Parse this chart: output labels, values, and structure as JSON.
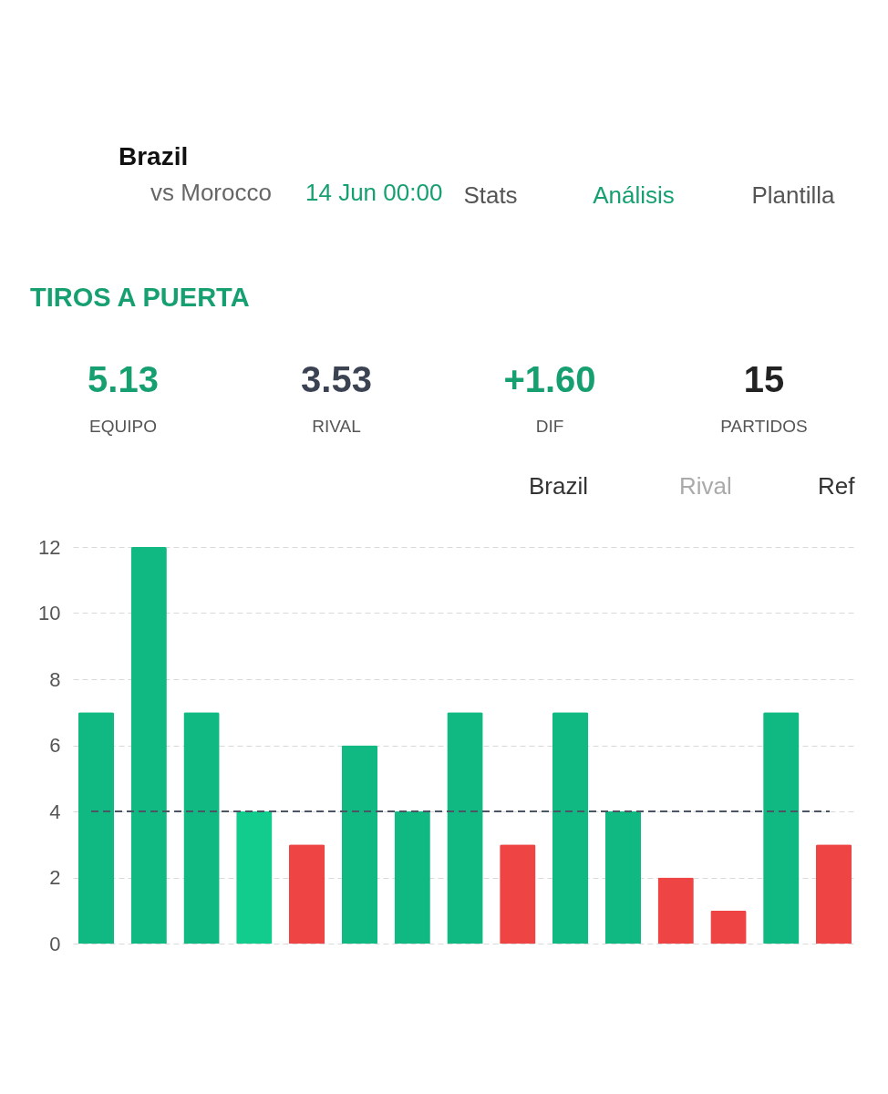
{
  "chart_data": {
    "type": "bar",
    "title": "TIROS A PUERTA",
    "categories": [
      null,
      null,
      null,
      null,
      null,
      null,
      null,
      null,
      null,
      null,
      null,
      null,
      null,
      null,
      null
    ],
    "values": [
      7,
      12,
      7,
      4,
      3,
      6,
      4,
      7,
      3,
      7,
      4,
      2,
      1,
      7,
      3
    ],
    "colors": [
      "#10b981",
      "#10b981",
      "#10b981",
      "#12cc8e",
      "#ef4444",
      "#10b981",
      "#10b981",
      "#10b981",
      "#ef4444",
      "#10b981",
      "#10b981",
      "#ef4444",
      "#ef4444",
      "#10b981",
      "#ef4444"
    ],
    "ylim": [
      0,
      12
    ],
    "yticks": [
      0,
      2,
      4,
      6,
      8,
      10,
      12
    ],
    "grid": "y",
    "ref_lines": [
      {
        "axis": "y",
        "value": 4,
        "color": "#4b5563",
        "line_style": "dashed"
      }
    ],
    "annotations": [
      "Brazil",
      "vs Morocco",
      "14 Jun 00:00",
      "Stats",
      "Análisis",
      "Plantilla",
      "5.13",
      "EQUIPO",
      "3.53",
      "RIVAL",
      "+1.60",
      "DIF",
      "15",
      "PARTIDOS",
      "Brazil",
      "Rival",
      "Ref"
    ]
  }
}
